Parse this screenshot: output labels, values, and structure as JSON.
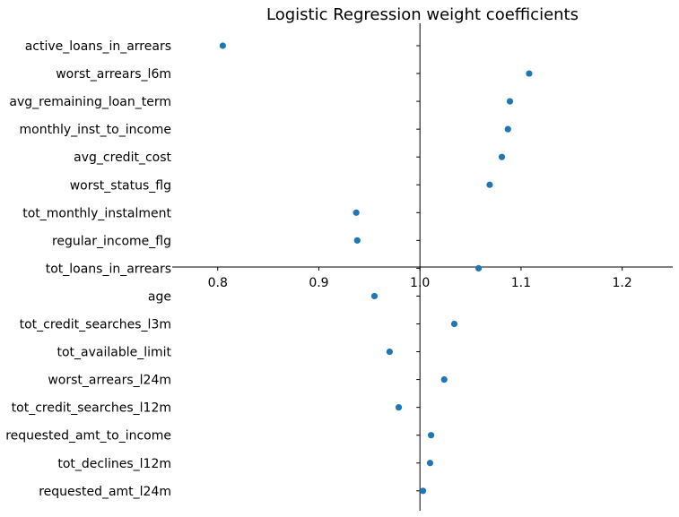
{
  "chart_data": {
    "type": "scatter",
    "title": "Logistic Regression weight coefficients",
    "xlabel": "",
    "ylabel": "",
    "xlim": [
      0.755,
      1.25
    ],
    "xticks": [
      0.8,
      0.9,
      1.0,
      1.1,
      1.2
    ],
    "xtick_labels": [
      "0.8",
      "0.9",
      "1.0",
      "1.1",
      "1.2"
    ],
    "grid": false,
    "marker_color": "#1f77b4",
    "points": [
      {
        "label": "active_loans_in_arrears",
        "value": 0.805
      },
      {
        "label": "worst_arrears_l6m",
        "value": 1.108
      },
      {
        "label": "avg_remaining_loan_term",
        "value": 1.089
      },
      {
        "label": "monthly_inst_to_income",
        "value": 1.087
      },
      {
        "label": "avg_credit_cost",
        "value": 1.081
      },
      {
        "label": "worst_status_flg",
        "value": 1.069
      },
      {
        "label": "tot_monthly_instalment",
        "value": 0.937
      },
      {
        "label": "regular_income_flg",
        "value": 0.938
      },
      {
        "label": "tot_loans_in_arrears",
        "value": 1.058
      },
      {
        "label": "age",
        "value": 0.955
      },
      {
        "label": "tot_credit_searches_l3m",
        "value": 1.034
      },
      {
        "label": "tot_available_limit",
        "value": 0.97
      },
      {
        "label": "worst_arrears_l24m",
        "value": 1.024
      },
      {
        "label": "tot_credit_searches_l12m",
        "value": 0.979
      },
      {
        "label": "requested_amt_to_income",
        "value": 1.011
      },
      {
        "label": "tot_declines_l12m",
        "value": 1.01
      },
      {
        "label": "requested_amt_l24m",
        "value": 1.003
      }
    ]
  }
}
